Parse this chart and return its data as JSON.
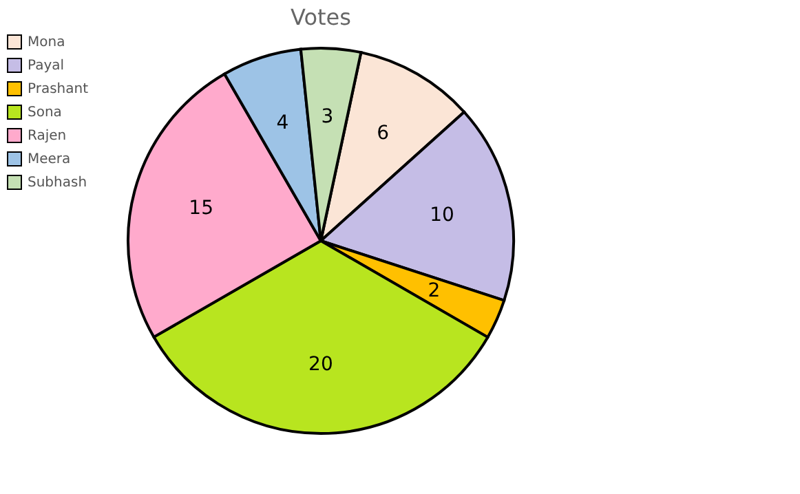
{
  "chart_data": {
    "type": "pie",
    "title": "Votes",
    "categories": [
      "Mona",
      "Payal",
      "Prashant",
      "Sona",
      "Rajen",
      "Meera",
      "Subhash"
    ],
    "values": [
      6,
      10,
      2,
      20,
      15,
      4,
      3
    ],
    "colors": [
      "#fbe5d6",
      "#c5bde6",
      "#ffc000",
      "#b8e51f",
      "#ffaacc",
      "#9dc3e6",
      "#c5e0b4"
    ],
    "data_labels": true,
    "legend": "left"
  }
}
